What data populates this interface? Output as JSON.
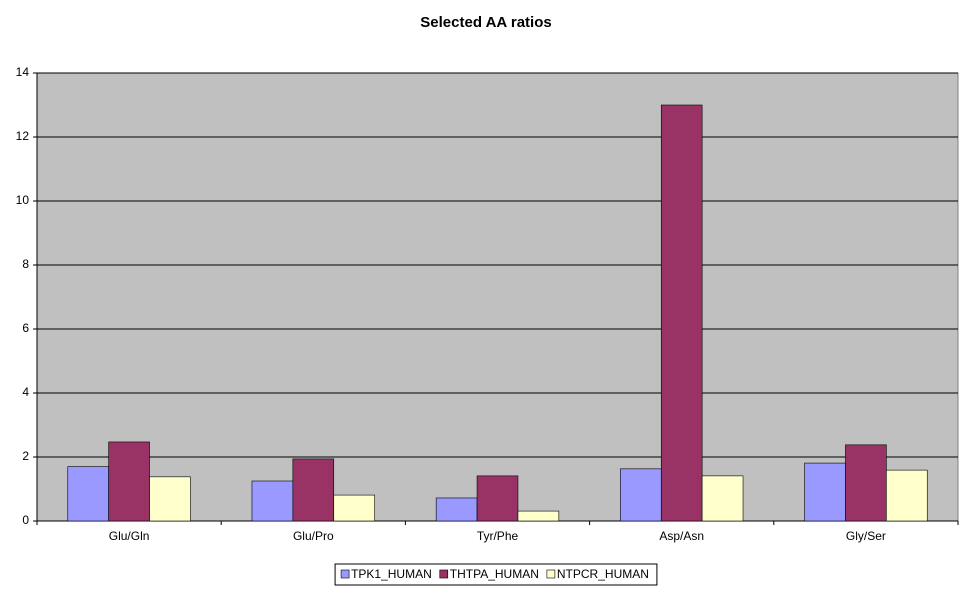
{
  "chart_data": {
    "type": "bar",
    "title": "Selected AA ratios",
    "categories": [
      "Glu/Gln",
      "Glu/Pro",
      "Tyr/Phe",
      "Asp/Asn",
      "Gly/Ser"
    ],
    "series": [
      {
        "name": "TPK1_HUMAN",
        "color": "#9999ff",
        "values": [
          1.7,
          1.25,
          0.72,
          1.63,
          1.81
        ]
      },
      {
        "name": "THTPA_HUMAN",
        "color": "#993366",
        "values": [
          2.47,
          1.94,
          1.41,
          13,
          2.38
        ]
      },
      {
        "name": "NTPCR_HUMAN",
        "color": "#ffffcc",
        "values": [
          1.38,
          0.81,
          0.31,
          1.41,
          1.59
        ]
      }
    ],
    "ylim": [
      0,
      14
    ],
    "yticks": [
      0,
      2,
      4,
      6,
      8,
      10,
      12,
      14
    ],
    "grid": true,
    "legend": "bottom"
  }
}
